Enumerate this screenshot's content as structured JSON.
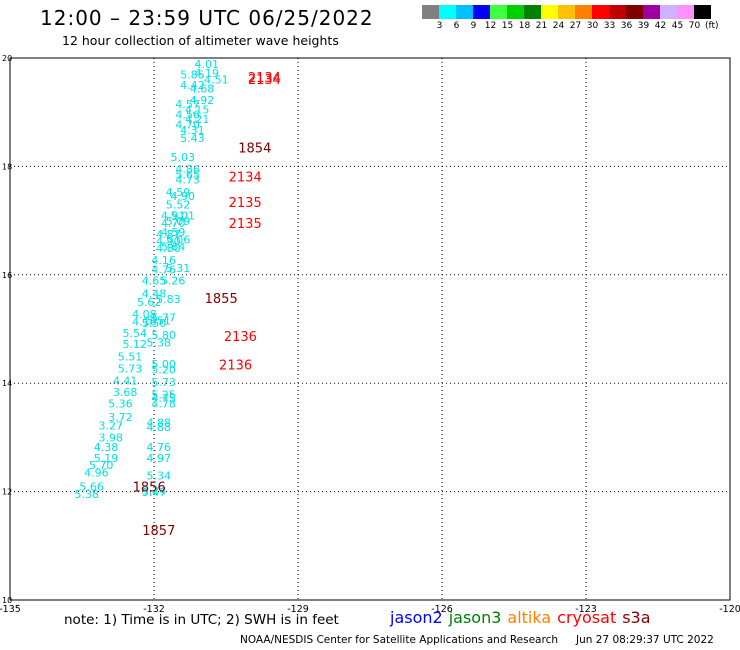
{
  "header": {
    "title": "12:00 – 23:59 UTC 06/25/2022",
    "subtitle": "12 hour collection of altimeter wave heights"
  },
  "colorbar": {
    "unit": "(ft)",
    "levels": [
      "3",
      "6",
      "9",
      "12",
      "15",
      "18",
      "21",
      "24",
      "27",
      "30",
      "33",
      "36",
      "39",
      "42",
      "45",
      "70"
    ],
    "colors": [
      "#808080",
      "#00ffff",
      "#00c0ff",
      "#0000ff",
      "#40ff40",
      "#00d000",
      "#008000",
      "#ffff00",
      "#ffc000",
      "#ff8000",
      "#ff0000",
      "#c00000",
      "#800000",
      "#a000a0",
      "#d0b0ff",
      "#ff90ff",
      "#000000"
    ]
  },
  "footer": {
    "note": "note: 1) Time is in UTC; 2) SWH is in feet",
    "satellites": [
      {
        "name": "jason2",
        "color": "#0000ff"
      },
      {
        "name": "jason3",
        "color": "#008000"
      },
      {
        "name": "altika",
        "color": "#ff8000"
      },
      {
        "name": "cryosat",
        "color": "#ff0000"
      },
      {
        "name": "s3a",
        "color": "#800000"
      }
    ],
    "credit": "NOAA/NESDIS Center for Satellite Applications and Research",
    "timestamp": "Jun 27 08:29:37 UTC 2022"
  },
  "chart_data": {
    "type": "scatter",
    "xlim": [
      -135,
      -120
    ],
    "ylim": [
      10,
      20
    ],
    "x_ticks": [
      "-135",
      "-132",
      "-129",
      "-126",
      "-123",
      "-120"
    ],
    "y_ticks": [
      "10",
      "12",
      "14",
      "16",
      "18",
      "20"
    ],
    "grid": true,
    "series": [
      {
        "name": "jason2",
        "color": "#00e0e0",
        "points": [
          {
            "x": -130.9,
            "y": 19.82,
            "label": "4.01"
          },
          {
            "x": -131.2,
            "y": 19.62,
            "label": "5.85"
          },
          {
            "x": -130.9,
            "y": 19.65,
            "label": "4.19"
          },
          {
            "x": -130.7,
            "y": 19.53,
            "label": "4.51"
          },
          {
            "x": -131.2,
            "y": 19.43,
            "label": "4.42"
          },
          {
            "x": -131.0,
            "y": 19.36,
            "label": "4.68"
          },
          {
            "x": -131.0,
            "y": 19.15,
            "label": "4.92"
          },
          {
            "x": -131.3,
            "y": 19.08,
            "label": "4.57"
          },
          {
            "x": -131.1,
            "y": 18.98,
            "label": "4.15"
          },
          {
            "x": -131.3,
            "y": 18.88,
            "label": "4.56"
          },
          {
            "x": -131.1,
            "y": 18.8,
            "label": "4.21"
          },
          {
            "x": -131.3,
            "y": 18.7,
            "label": "4.70"
          },
          {
            "x": -131.2,
            "y": 18.6,
            "label": "4.31"
          },
          {
            "x": -131.2,
            "y": 18.45,
            "label": "5.43"
          },
          {
            "x": -131.4,
            "y": 18.1,
            "label": "5.03"
          },
          {
            "x": -131.3,
            "y": 17.88,
            "label": "4.86"
          },
          {
            "x": -131.3,
            "y": 17.78,
            "label": "5.65"
          },
          {
            "x": -131.3,
            "y": 17.68,
            "label": "4.73"
          },
          {
            "x": -131.5,
            "y": 17.45,
            "label": "4.59"
          },
          {
            "x": -131.4,
            "y": 17.38,
            "label": "4.90"
          },
          {
            "x": -131.5,
            "y": 17.22,
            "label": "5.52"
          },
          {
            "x": -131.6,
            "y": 17.02,
            "label": "4.91"
          },
          {
            "x": -131.4,
            "y": 17.02,
            "label": "5.01"
          },
          {
            "x": -131.5,
            "y": 16.92,
            "label": "5.09"
          },
          {
            "x": -131.6,
            "y": 16.88,
            "label": "4.70"
          },
          {
            "x": -131.6,
            "y": 16.72,
            "label": "4.59"
          },
          {
            "x": -131.7,
            "y": 16.68,
            "label": "4.87"
          },
          {
            "x": -131.5,
            "y": 16.58,
            "label": "5.06"
          },
          {
            "x": -131.7,
            "y": 16.55,
            "label": "4.90"
          },
          {
            "x": -131.6,
            "y": 16.45,
            "label": "5.64"
          },
          {
            "x": -131.7,
            "y": 16.42,
            "label": "4.80"
          },
          {
            "x": -131.8,
            "y": 16.2,
            "label": "4.16"
          },
          {
            "x": -131.5,
            "y": 16.05,
            "label": "5.31"
          },
          {
            "x": -131.8,
            "y": 16.02,
            "label": "4.76"
          },
          {
            "x": -131.6,
            "y": 15.82,
            "label": "5.26"
          },
          {
            "x": -132.0,
            "y": 15.82,
            "label": "4.65"
          },
          {
            "x": -132.0,
            "y": 15.58,
            "label": "4.48"
          },
          {
            "x": -131.7,
            "y": 15.48,
            "label": "5.83"
          },
          {
            "x": -132.1,
            "y": 15.42,
            "label": "5.62"
          },
          {
            "x": -132.2,
            "y": 15.2,
            "label": "4.08"
          },
          {
            "x": -131.8,
            "y": 15.14,
            "label": "5.77"
          },
          {
            "x": -132.2,
            "y": 15.06,
            "label": "4.10"
          },
          {
            "x": -131.9,
            "y": 15.08,
            "label": "5.51"
          },
          {
            "x": -132.0,
            "y": 15.04,
            "label": "5.50"
          },
          {
            "x": -132.4,
            "y": 14.85,
            "label": "5.54"
          },
          {
            "x": -131.8,
            "y": 14.82,
            "label": "5.80"
          },
          {
            "x": -132.4,
            "y": 14.65,
            "label": "5.12"
          },
          {
            "x": -131.9,
            "y": 14.68,
            "label": "5.38"
          },
          {
            "x": -132.5,
            "y": 14.42,
            "label": "5.51"
          },
          {
            "x": -131.8,
            "y": 14.28,
            "label": "5.00"
          },
          {
            "x": -132.5,
            "y": 14.2,
            "label": "5.73"
          },
          {
            "x": -131.8,
            "y": 14.18,
            "label": "5.20"
          },
          {
            "x": -132.6,
            "y": 13.98,
            "label": "4.41"
          },
          {
            "x": -131.8,
            "y": 13.95,
            "label": "5.73"
          },
          {
            "x": -132.6,
            "y": 13.76,
            "label": "3.68"
          },
          {
            "x": -131.8,
            "y": 13.72,
            "label": "5.25"
          },
          {
            "x": -131.8,
            "y": 13.65,
            "label": "4.75"
          },
          {
            "x": -132.7,
            "y": 13.55,
            "label": "5.36"
          },
          {
            "x": -131.8,
            "y": 13.55,
            "label": "4.78"
          },
          {
            "x": -132.7,
            "y": 13.3,
            "label": "3.72"
          },
          {
            "x": -131.9,
            "y": 13.2,
            "label": "4.88"
          },
          {
            "x": -132.9,
            "y": 13.15,
            "label": "3.27"
          },
          {
            "x": -131.9,
            "y": 13.12,
            "label": "4.88"
          },
          {
            "x": -132.9,
            "y": 12.92,
            "label": "3.98"
          },
          {
            "x": -133.0,
            "y": 12.75,
            "label": "4.38"
          },
          {
            "x": -131.9,
            "y": 12.75,
            "label": "4.76"
          },
          {
            "x": -133.0,
            "y": 12.55,
            "label": "5.19"
          },
          {
            "x": -131.9,
            "y": 12.55,
            "label": "4.97"
          },
          {
            "x": -133.1,
            "y": 12.42,
            "label": "5.70"
          },
          {
            "x": -133.2,
            "y": 12.28,
            "label": "4.96"
          },
          {
            "x": -131.9,
            "y": 12.22,
            "label": "5.34"
          },
          {
            "x": -133.3,
            "y": 12.02,
            "label": "5.66"
          },
          {
            "x": -132.0,
            "y": 11.95,
            "label": "5.24"
          },
          {
            "x": -133.4,
            "y": 11.88,
            "label": "5.38"
          },
          {
            "x": -132.0,
            "y": 11.92,
            "label": "5.47"
          }
        ]
      },
      {
        "name": "cryosat",
        "color": "#ff0000",
        "points": [
          {
            "x": -129.7,
            "y": 19.56,
            "label": "2134"
          },
          {
            "x": -129.7,
            "y": 19.52,
            "label": "2134"
          },
          {
            "x": -130.1,
            "y": 17.72,
            "label": "2134"
          },
          {
            "x": -130.1,
            "y": 17.25,
            "label": "2135"
          },
          {
            "x": -130.1,
            "y": 16.86,
            "label": "2135"
          },
          {
            "x": -130.2,
            "y": 14.78,
            "label": "2136"
          },
          {
            "x": -130.3,
            "y": 14.25,
            "label": "2136"
          }
        ]
      },
      {
        "name": "s3a",
        "color": "#800000",
        "points": [
          {
            "x": -129.9,
            "y": 18.26,
            "label": "1854"
          },
          {
            "x": -130.6,
            "y": 15.48,
            "label": "1855"
          },
          {
            "x": -132.1,
            "y": 12.0,
            "label": "1856"
          },
          {
            "x": -131.9,
            "y": 11.2,
            "label": "1857"
          }
        ]
      }
    ]
  }
}
